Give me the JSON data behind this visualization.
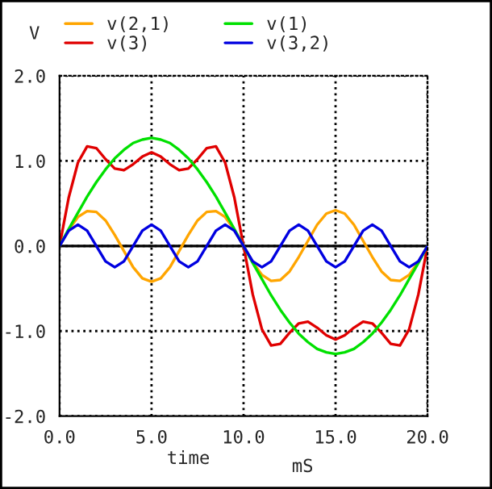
{
  "chart_data": {
    "type": "line",
    "ylabel": "V",
    "xlabel": "time",
    "annotations": [
      "mS"
    ],
    "x": [
      0,
      0.5,
      1,
      1.5,
      2,
      2.5,
      3,
      3.5,
      4,
      4.5,
      5,
      5.5,
      6,
      6.5,
      7,
      7.5,
      8,
      8.5,
      9,
      9.5,
      10,
      10.5,
      11,
      11.5,
      12,
      12.5,
      13,
      13.5,
      14,
      14.5,
      15,
      15.5,
      16,
      16.5,
      17,
      17.5,
      18,
      18.5,
      19,
      19.5,
      20
    ],
    "series": [
      {
        "name": "v(2,1)",
        "color": "#ffa500",
        "values": [
          0,
          0.19,
          0.34,
          0.41,
          0.4,
          0.3,
          0.13,
          -0.06,
          -0.25,
          -0.38,
          -0.42,
          -0.38,
          -0.25,
          -0.06,
          0.13,
          0.3,
          0.4,
          0.41,
          0.34,
          0.19,
          0,
          -0.19,
          -0.34,
          -0.41,
          -0.4,
          -0.3,
          -0.13,
          0.06,
          0.25,
          0.38,
          0.42,
          0.38,
          0.25,
          0.06,
          -0.13,
          -0.3,
          -0.4,
          -0.41,
          -0.34,
          -0.19,
          0
        ]
      },
      {
        "name": "v(3)",
        "color": "#e00000",
        "values": [
          0,
          0.57,
          0.98,
          1.17,
          1.15,
          1.02,
          0.91,
          0.89,
          0.96,
          1.05,
          1.1,
          1.05,
          0.96,
          0.89,
          0.91,
          1.02,
          1.15,
          1.17,
          0.98,
          0.57,
          0,
          -0.57,
          -0.98,
          -1.17,
          -1.15,
          -1.02,
          -0.91,
          -0.89,
          -0.96,
          -1.05,
          -1.1,
          -1.05,
          -0.96,
          -0.89,
          -0.91,
          -1.02,
          -1.15,
          -1.17,
          -0.98,
          -0.57,
          0
        ]
      },
      {
        "name": "v(1)",
        "color": "#00e000",
        "values": [
          0,
          0.2,
          0.39,
          0.58,
          0.75,
          0.9,
          1.03,
          1.13,
          1.21,
          1.25,
          1.27,
          1.25,
          1.21,
          1.13,
          1.03,
          0.9,
          0.75,
          0.58,
          0.39,
          0.2,
          0,
          -0.2,
          -0.39,
          -0.58,
          -0.75,
          -0.9,
          -1.03,
          -1.13,
          -1.21,
          -1.25,
          -1.27,
          -1.25,
          -1.21,
          -1.13,
          -1.03,
          -0.9,
          -0.75,
          -0.58,
          -0.39,
          -0.2,
          0
        ]
      },
      {
        "name": "v(3,2)",
        "color": "#0000e0",
        "values": [
          0,
          0.18,
          0.25,
          0.18,
          0,
          -0.18,
          -0.25,
          -0.18,
          0,
          0.18,
          0.25,
          0.18,
          0,
          -0.18,
          -0.25,
          -0.18,
          0,
          0.18,
          0.25,
          0.18,
          0,
          -0.18,
          -0.25,
          -0.18,
          0,
          0.18,
          0.25,
          0.18,
          0,
          -0.18,
          -0.25,
          -0.18,
          0,
          0.18,
          0.25,
          0.18,
          0,
          -0.18,
          -0.25,
          -0.18,
          0
        ]
      }
    ],
    "xlim": [
      0,
      20
    ],
    "ylim": [
      -2,
      2
    ],
    "xticks": [
      {
        "value": 0,
        "label": "0.0"
      },
      {
        "value": 5,
        "label": "5.0"
      },
      {
        "value": 10,
        "label": "10.0"
      },
      {
        "value": 15,
        "label": "15.0"
      },
      {
        "value": 20,
        "label": "20.0"
      }
    ],
    "yticks": [
      {
        "value": -2,
        "label": "-2.0"
      },
      {
        "value": -1,
        "label": "-1.0"
      },
      {
        "value": 0,
        "label": "0.0"
      },
      {
        "value": 1,
        "label": "1.0"
      },
      {
        "value": 2,
        "label": "2.0"
      }
    ],
    "ref_lines": [
      {
        "axis": "y",
        "value": 0,
        "color": "#000000"
      }
    ],
    "grid": true,
    "legend": "top",
    "line_style": "solid"
  }
}
